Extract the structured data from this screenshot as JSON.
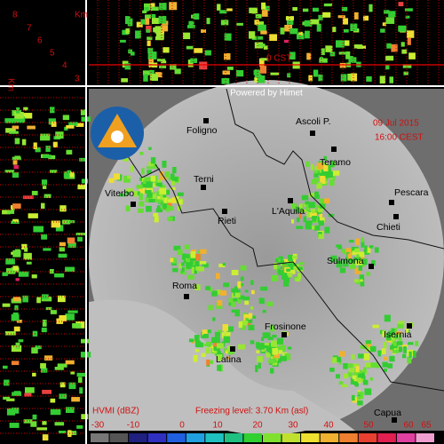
{
  "profile": {
    "unit": "Km",
    "side_unit": "Km",
    "levels": [
      "8",
      "7",
      "6",
      "5",
      "4",
      "3"
    ],
    "iso_label": "0 CST"
  },
  "map": {
    "credit": "Powered by Himet",
    "date": "09 Jul 2015",
    "time": "16:00 CEST",
    "cities": [
      "Foligno",
      "Ascoli P.",
      "Teramo",
      "Terni",
      "Viterbo",
      "Pescara",
      "Rieti",
      "L'Aquila",
      "Chieti",
      "Sulmona",
      "Roma",
      "Frosinone",
      "Isernia",
      "Latina",
      "Capua"
    ]
  },
  "legend": {
    "title": "HVMI (dBZ)",
    "freezing": "Freezing level: 3.70 Km (asl)",
    "labels": [
      "-30",
      "-10",
      "0",
      "10",
      "20",
      "30",
      "40",
      "50",
      "60",
      "65"
    ]
  }
}
